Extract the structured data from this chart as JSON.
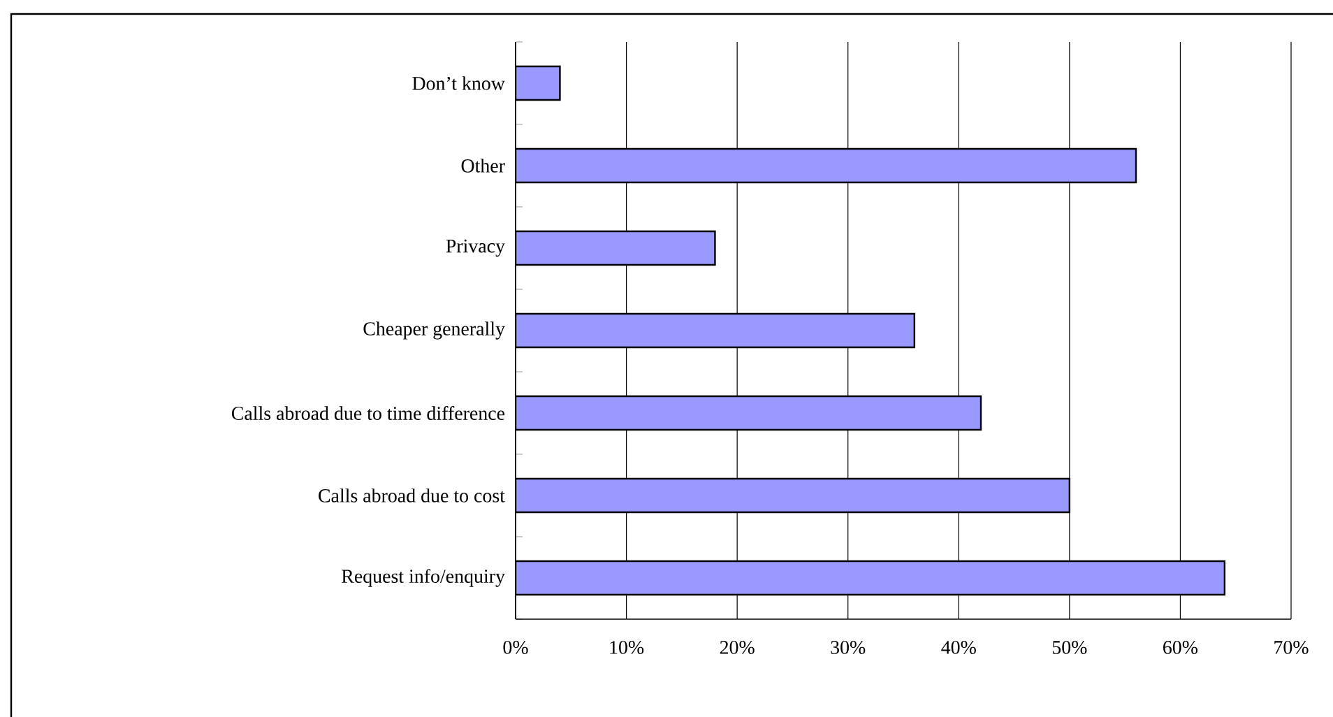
{
  "chart_data": {
    "type": "bar",
    "orientation": "horizontal",
    "categories": [
      "Don’t know",
      "Other",
      "Privacy",
      "Cheaper generally",
      "Calls abroad due to time difference",
      "Calls abroad due to cost",
      "Request info/enquiry"
    ],
    "values": [
      4,
      56,
      18,
      36,
      42,
      50,
      64
    ],
    "color": "#9999ff",
    "xlim": [
      0,
      70
    ],
    "xticks": [
      {
        "value": 0,
        "label": "0%"
      },
      {
        "value": 10,
        "label": "10%"
      },
      {
        "value": 20,
        "label": "20%"
      },
      {
        "value": 30,
        "label": "30%"
      },
      {
        "value": 40,
        "label": "40%"
      },
      {
        "value": 50,
        "label": "50%"
      },
      {
        "value": 60,
        "label": "60%"
      },
      {
        "value": 70,
        "label": "70%"
      }
    ],
    "grid": "x"
  }
}
